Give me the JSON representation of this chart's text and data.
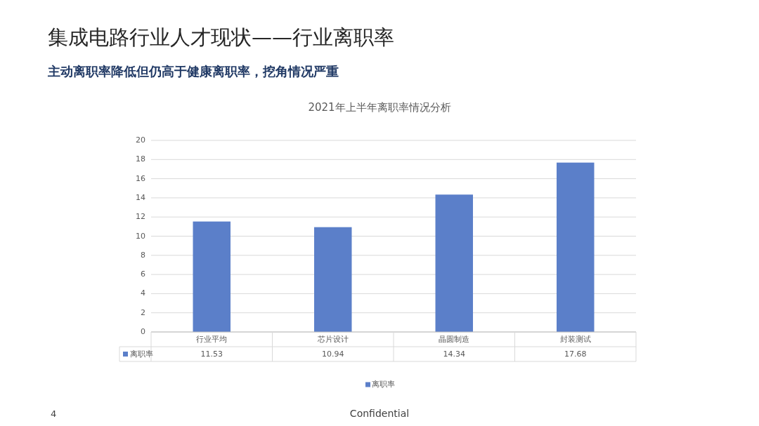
{
  "chart_data": {
    "type": "bar",
    "title": "集成电路行业人才现状——行业离职率",
    "subtitle": "主动离职率降低但仍高于健康离职率，挖角情况严重",
    "annotations": [
      "2021年上半年离职率情况分析",
      "4",
      "Confidential"
    ],
    "categories": [
      "行业平均",
      "芯片设计",
      "晶圆制造",
      "封装测试"
    ],
    "series": [
      {
        "name": "离职率",
        "color": "#5b7fc9",
        "values": [
          11.53,
          10.94,
          14.34,
          17.68
        ]
      }
    ],
    "ylim": [
      0,
      20
    ],
    "yticks": [
      0,
      2,
      4,
      6,
      8,
      10,
      12,
      14,
      16,
      18,
      20
    ],
    "grid": "y",
    "legend": "bottom",
    "data_labels": true
  }
}
